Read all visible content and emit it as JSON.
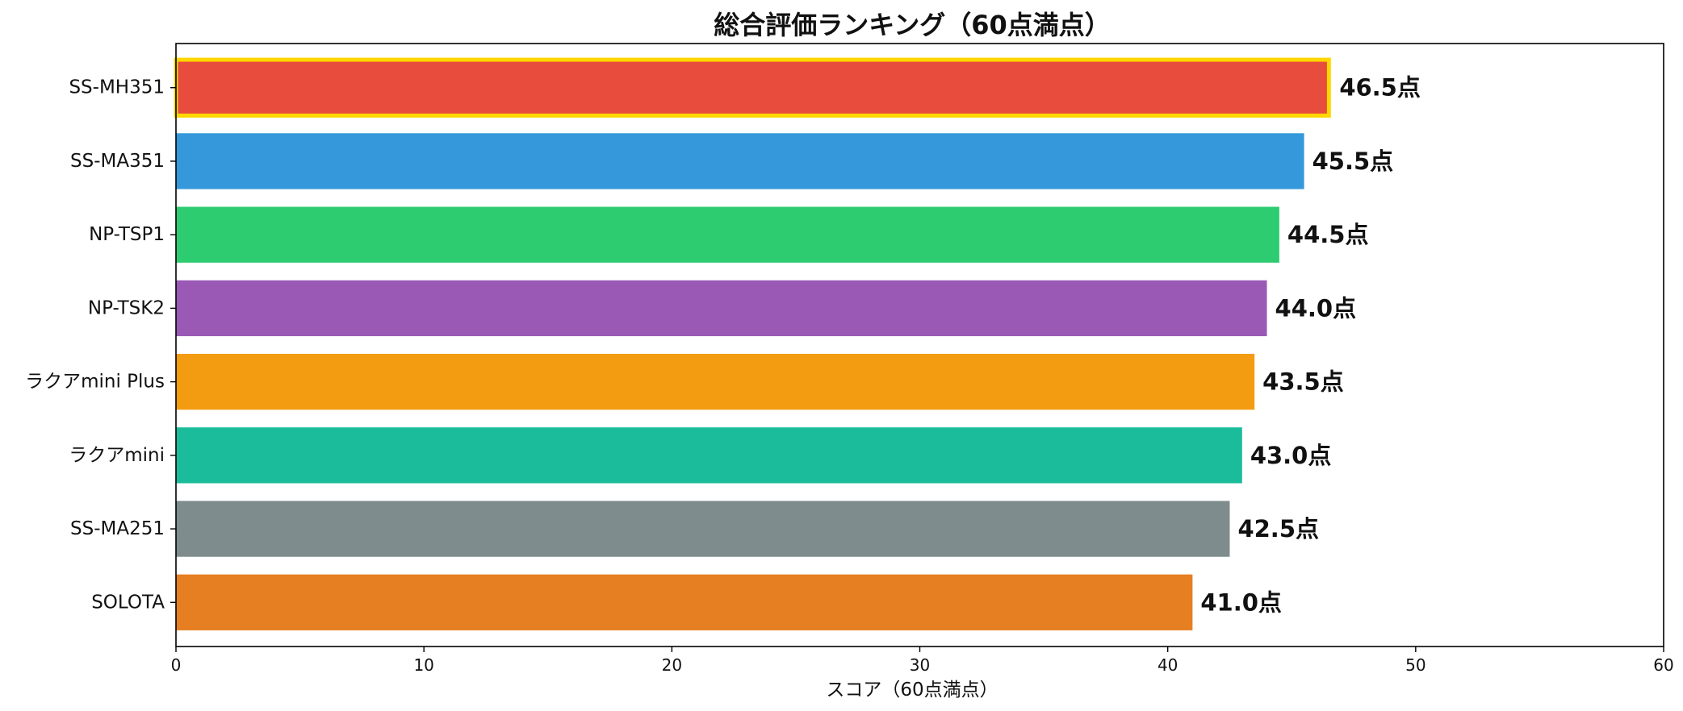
{
  "chart_data": {
    "type": "bar",
    "orientation": "horizontal",
    "title": "総合評価ランキング（60点満点）",
    "xlabel": "スコア（60点満点）",
    "ylabel": "",
    "xlim": [
      0,
      60
    ],
    "xticks": [
      0,
      10,
      20,
      30,
      40,
      50,
      60
    ],
    "grid": false,
    "value_suffix": "点",
    "categories": [
      "SS-MH351",
      "SS-MA351",
      "NP-TSP1",
      "NP-TSK2",
      "ラクアmini Plus",
      "ラクアmini",
      "SS-MA251",
      "SOLOTA"
    ],
    "values": [
      46.5,
      45.5,
      44.5,
      44.0,
      43.5,
      43.0,
      42.5,
      41.0
    ],
    "value_labels": [
      "46.5点",
      "45.5点",
      "44.5点",
      "44.0点",
      "43.5点",
      "43.0点",
      "42.5点",
      "41.0点"
    ],
    "colors": [
      "#e74c3c",
      "#3498db",
      "#2ecc71",
      "#9b59b6",
      "#f39c12",
      "#1abc9c",
      "#7f8c8d",
      "#e67e22"
    ],
    "highlight": {
      "index": 0,
      "edge_color": "#ffd700"
    }
  }
}
